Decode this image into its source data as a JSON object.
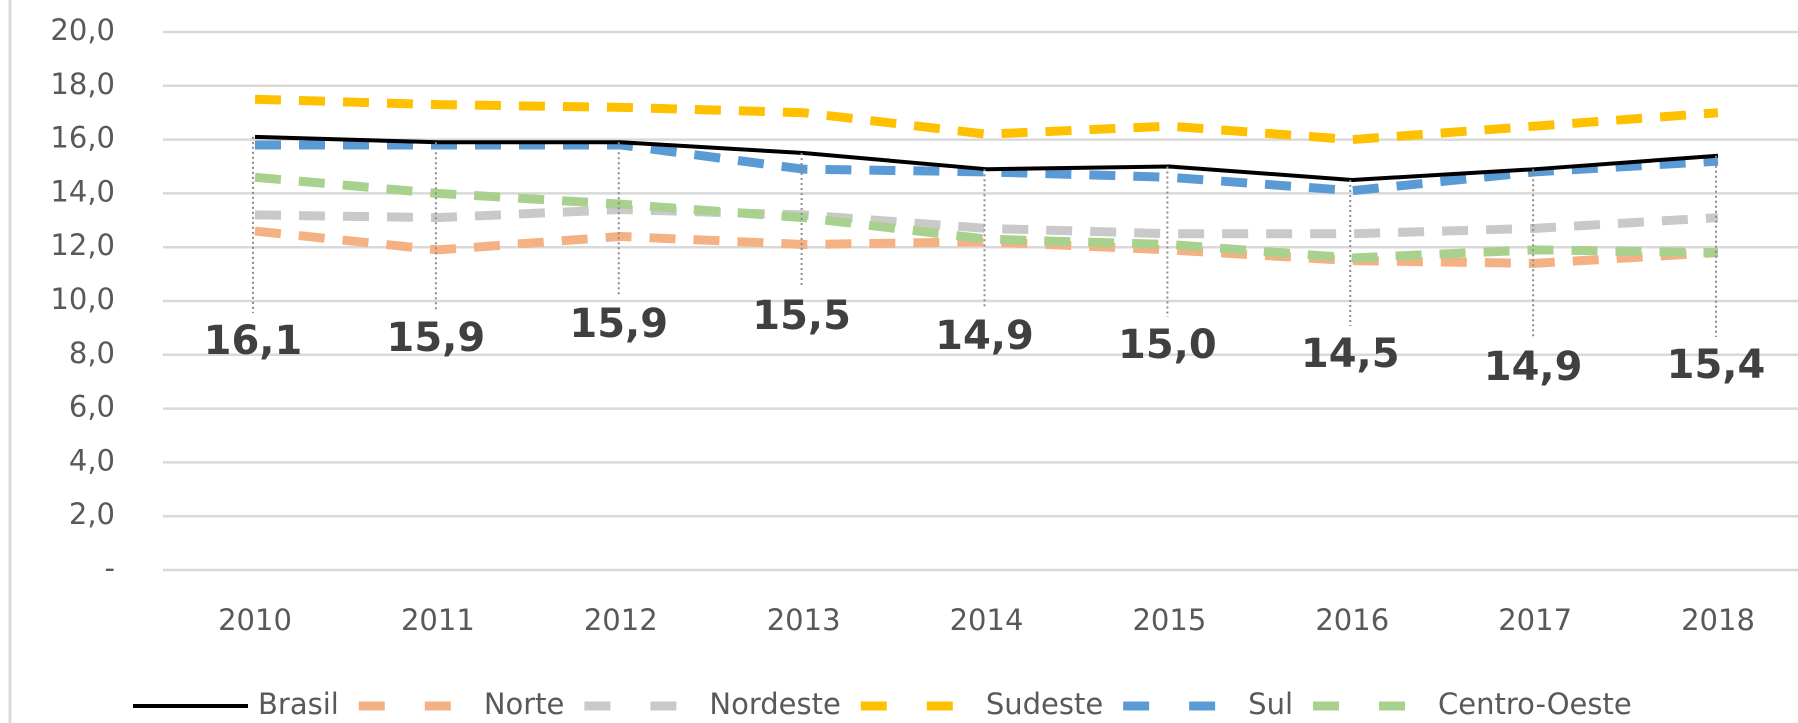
{
  "chart_data": {
    "type": "line",
    "categories": [
      "2010",
      "2011",
      "2012",
      "2013",
      "2014",
      "2015",
      "2016",
      "2017",
      "2018"
    ],
    "series": [
      {
        "name": "Brasil",
        "color": "#000000",
        "values": [
          16.1,
          15.9,
          15.9,
          15.5,
          14.9,
          15.0,
          14.5,
          14.9,
          15.4
        ],
        "value_labels": [
          "16,1",
          "15,9",
          "15,9",
          "15,5",
          "14,9",
          "15,0",
          "14,5",
          "14,9",
          "15,4"
        ]
      },
      {
        "name": "Norte",
        "color": "#f4b183",
        "values": [
          12.6,
          11.9,
          12.4,
          12.1,
          12.2,
          11.9,
          11.5,
          11.4,
          11.8
        ]
      },
      {
        "name": "Nordeste",
        "color": "#c9c9c9",
        "values": [
          13.2,
          13.1,
          13.4,
          13.2,
          12.7,
          12.5,
          12.5,
          12.7,
          13.1
        ]
      },
      {
        "name": "Sudeste",
        "color": "#ffc000",
        "values": [
          17.5,
          17.3,
          17.2,
          17.0,
          16.2,
          16.5,
          16.0,
          16.5,
          17.0
        ]
      },
      {
        "name": "Sul",
        "color": "#5b9bd5",
        "values": [
          15.8,
          15.8,
          15.8,
          14.9,
          14.8,
          14.6,
          14.1,
          14.8,
          15.2
        ]
      },
      {
        "name": "Centro-Oeste",
        "color": "#a9d18e",
        "values": [
          14.6,
          14.0,
          13.6,
          13.1,
          12.3,
          12.1,
          11.6,
          11.9,
          11.8
        ]
      }
    ],
    "ylim": [
      0,
      20
    ],
    "yticks": [
      {
        "value": 0,
        "label": "-"
      },
      {
        "value": 2,
        "label": "2,0"
      },
      {
        "value": 4,
        "label": "4,0"
      },
      {
        "value": 6,
        "label": "6,0"
      },
      {
        "value": 8,
        "label": "8,0"
      },
      {
        "value": 10,
        "label": "10,0"
      },
      {
        "value": 12,
        "label": "12,0"
      },
      {
        "value": 14,
        "label": "14,0"
      },
      {
        "value": 16,
        "label": "16,0"
      },
      {
        "value": 18,
        "label": "18,0"
      },
      {
        "value": 20,
        "label": "20,0"
      }
    ],
    "grid": true,
    "legend": "bottom"
  }
}
